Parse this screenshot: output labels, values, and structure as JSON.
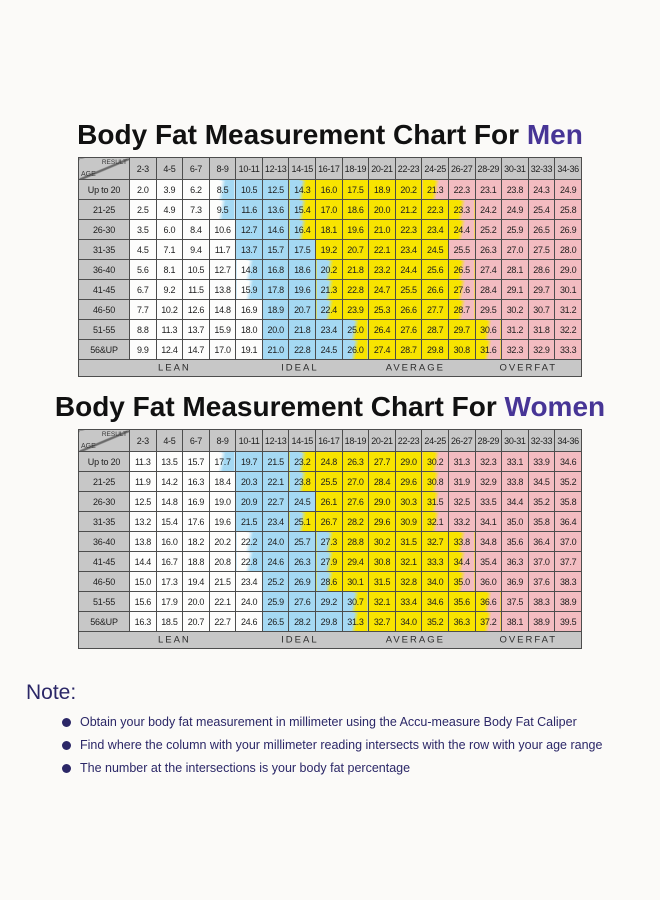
{
  "colors": {
    "accent": "#473596",
    "note_text": "#2b2767",
    "header_bg": "#c7c7c7",
    "lean_bg": "#fdfdfc",
    "ideal_bg": "#a5d9f3",
    "average_bg": "#f8e400",
    "overfat_bg": "#f3bcc1",
    "border": "#4d4d4d"
  },
  "chart_data": [
    {
      "type": "table",
      "title_prefix": "Body Fat Measurement Chart For ",
      "title_accent": "Men",
      "corner_top": "RESULT",
      "corner_bottom": "AGE",
      "columns": [
        "2-3",
        "4-5",
        "6-7",
        "8-9",
        "10-11",
        "12-13",
        "14-15",
        "16-17",
        "18-19",
        "20-21",
        "22-23",
        "24-25",
        "26-27",
        "28-29",
        "30-31",
        "32-33",
        "34-36"
      ],
      "rows": [
        {
          "age": "Up to 20",
          "values": [
            "2.0",
            "3.9",
            "6.2",
            "8.5",
            "10.5",
            "12.5",
            "14.3",
            "16.0",
            "17.5",
            "18.9",
            "20.2",
            "21.3",
            "22.3",
            "23.1",
            "23.8",
            "24.3",
            "24.9"
          ],
          "colors": [
            "w",
            "w",
            "w",
            "wb",
            "b",
            "b",
            "by",
            "y",
            "y",
            "y",
            "y",
            "yp",
            "p",
            "p",
            "p",
            "p",
            "p"
          ]
        },
        {
          "age": "21-25",
          "values": [
            "2.5",
            "4.9",
            "7.3",
            "9.5",
            "11.6",
            "13.6",
            "15.4",
            "17.0",
            "18.6",
            "20.0",
            "21.2",
            "22.3",
            "23.3",
            "24.2",
            "24.9",
            "25.4",
            "25.8"
          ],
          "colors": [
            "w",
            "w",
            "w",
            "wb",
            "b",
            "b",
            "by",
            "y",
            "y",
            "y",
            "y",
            "y",
            "yp",
            "p",
            "p",
            "p",
            "p"
          ]
        },
        {
          "age": "26-30",
          "values": [
            "3.5",
            "6.0",
            "8.4",
            "10.6",
            "12.7",
            "14.6",
            "16.4",
            "18.1",
            "19.6",
            "21.0",
            "22.3",
            "23.4",
            "24.4",
            "25.2",
            "25.9",
            "26.5",
            "26.9"
          ],
          "colors": [
            "w",
            "w",
            "w",
            "w",
            "b",
            "b",
            "by",
            "y",
            "y",
            "y",
            "y",
            "y",
            "yp",
            "p",
            "p",
            "p",
            "p"
          ]
        },
        {
          "age": "31-35",
          "values": [
            "4.5",
            "7.1",
            "9.4",
            "11.7",
            "13.7",
            "15.7",
            "17.5",
            "19.2",
            "20.7",
            "22.1",
            "23.4",
            "24.5",
            "25.5",
            "26.3",
            "27.0",
            "27.5",
            "28.0"
          ],
          "colors": [
            "w",
            "w",
            "w",
            "w",
            "b",
            "b",
            "b",
            "y",
            "y",
            "y",
            "y",
            "y",
            "p",
            "p",
            "p",
            "p",
            "p"
          ]
        },
        {
          "age": "36-40",
          "values": [
            "5.6",
            "8.1",
            "10.5",
            "12.7",
            "14.8",
            "16.8",
            "18.6",
            "20.2",
            "21.8",
            "23.2",
            "24.4",
            "25.6",
            "26.5",
            "27.4",
            "28.1",
            "28.6",
            "29.0"
          ],
          "colors": [
            "w",
            "w",
            "w",
            "w",
            "wb",
            "b",
            "b",
            "by",
            "y",
            "y",
            "y",
            "y",
            "yp",
            "p",
            "p",
            "p",
            "p"
          ]
        },
        {
          "age": "41-45",
          "values": [
            "6.7",
            "9.2",
            "11.5",
            "13.8",
            "15.9",
            "17.8",
            "19.6",
            "21.3",
            "22.8",
            "24.7",
            "25.5",
            "26.6",
            "27.6",
            "28.4",
            "29.1",
            "29.7",
            "30.1"
          ],
          "colors": [
            "w",
            "w",
            "w",
            "w",
            "wb",
            "b",
            "b",
            "by",
            "y",
            "y",
            "y",
            "y",
            "yp",
            "p",
            "p",
            "p",
            "p"
          ]
        },
        {
          "age": "46-50",
          "values": [
            "7.7",
            "10.2",
            "12.6",
            "14.8",
            "16.9",
            "18.9",
            "20.7",
            "22.4",
            "23.9",
            "25.3",
            "26.6",
            "27.7",
            "28.7",
            "29.5",
            "30.2",
            "30.7",
            "31.2"
          ],
          "colors": [
            "w",
            "w",
            "w",
            "w",
            "w",
            "b",
            "b",
            "by",
            "y",
            "y",
            "y",
            "y",
            "yp",
            "p",
            "p",
            "p",
            "p"
          ]
        },
        {
          "age": "51-55",
          "values": [
            "8.8",
            "11.3",
            "13.7",
            "15.9",
            "18.0",
            "20.0",
            "21.8",
            "23.4",
            "25.0",
            "26.4",
            "27.6",
            "28.7",
            "29.7",
            "30.6",
            "31.2",
            "31.8",
            "32.2"
          ],
          "colors": [
            "w",
            "w",
            "w",
            "w",
            "w",
            "b",
            "b",
            "b",
            "by",
            "y",
            "y",
            "y",
            "y",
            "yp",
            "p",
            "p",
            "p"
          ]
        },
        {
          "age": "56&UP",
          "values": [
            "9.9",
            "12.4",
            "14.7",
            "17.0",
            "19.1",
            "21.0",
            "22.8",
            "24.5",
            "26.0",
            "27.4",
            "28.7",
            "29.8",
            "30.8",
            "31.6",
            "32.3",
            "32.9",
            "33.3"
          ],
          "colors": [
            "w",
            "w",
            "w",
            "w",
            "w",
            "b",
            "b",
            "b",
            "by",
            "y",
            "y",
            "y",
            "y",
            "yp",
            "p",
            "p",
            "p"
          ]
        }
      ],
      "zones": [
        "LEAN",
        "IDEAL",
        "AVERAGE",
        "OVERFAT"
      ]
    },
    {
      "type": "table",
      "title_prefix": "Body Fat Measurement Chart For ",
      "title_accent": "Women",
      "corner_top": "RESULT",
      "corner_bottom": "AGE",
      "columns": [
        "2-3",
        "4-5",
        "6-7",
        "8-9",
        "10-11",
        "12-13",
        "14-15",
        "16-17",
        "18-19",
        "20-21",
        "22-23",
        "24-25",
        "26-27",
        "28-29",
        "30-31",
        "32-33",
        "34-36"
      ],
      "rows": [
        {
          "age": "Up to 20",
          "values": [
            "11.3",
            "13.5",
            "15.7",
            "17.7",
            "19.7",
            "21.5",
            "23.2",
            "24.8",
            "26.3",
            "27.7",
            "29.0",
            "30.2",
            "31.3",
            "32.3",
            "33.1",
            "33.9",
            "34.6"
          ],
          "colors": [
            "w",
            "w",
            "w",
            "wb",
            "b",
            "b",
            "by",
            "y",
            "y",
            "y",
            "y",
            "yp",
            "p",
            "p",
            "p",
            "p",
            "p"
          ]
        },
        {
          "age": "21-25",
          "values": [
            "11.9",
            "14.2",
            "16.3",
            "18.4",
            "20.3",
            "22.1",
            "23.8",
            "25.5",
            "27.0",
            "28.4",
            "29.6",
            "30.8",
            "31.9",
            "32.9",
            "33.8",
            "34.5",
            "35.2"
          ],
          "colors": [
            "w",
            "w",
            "w",
            "w",
            "b",
            "b",
            "by",
            "y",
            "y",
            "y",
            "y",
            "yp",
            "p",
            "p",
            "p",
            "p",
            "p"
          ]
        },
        {
          "age": "26-30",
          "values": [
            "12.5",
            "14.8",
            "16.9",
            "19.0",
            "20.9",
            "22.7",
            "24.5",
            "26.1",
            "27.6",
            "29.0",
            "30.3",
            "31.5",
            "32.5",
            "33.5",
            "34.4",
            "35.2",
            "35.8"
          ],
          "colors": [
            "w",
            "w",
            "w",
            "w",
            "b",
            "b",
            "b",
            "y",
            "y",
            "y",
            "y",
            "yp",
            "p",
            "p",
            "p",
            "p",
            "p"
          ]
        },
        {
          "age": "31-35",
          "values": [
            "13.2",
            "15.4",
            "17.6",
            "19.6",
            "21.5",
            "23.4",
            "25.1",
            "26.7",
            "28.2",
            "29.6",
            "30.9",
            "32.1",
            "33.2",
            "34.1",
            "35.0",
            "35.8",
            "36.4"
          ],
          "colors": [
            "w",
            "w",
            "w",
            "w",
            "b",
            "b",
            "by",
            "y",
            "y",
            "y",
            "y",
            "yp",
            "p",
            "p",
            "p",
            "p",
            "p"
          ]
        },
        {
          "age": "36-40",
          "values": [
            "13.8",
            "16.0",
            "18.2",
            "20.2",
            "22.2",
            "24.0",
            "25.7",
            "27.3",
            "28.8",
            "30.2",
            "31.5",
            "32.7",
            "33.8",
            "34.8",
            "35.6",
            "36.4",
            "37.0"
          ],
          "colors": [
            "w",
            "w",
            "w",
            "w",
            "wb",
            "b",
            "b",
            "by",
            "y",
            "y",
            "y",
            "y",
            "yp",
            "p",
            "p",
            "p",
            "p"
          ]
        },
        {
          "age": "41-45",
          "values": [
            "14.4",
            "16.7",
            "18.8",
            "20.8",
            "22.8",
            "24.6",
            "26.3",
            "27.9",
            "29.4",
            "30.8",
            "32.1",
            "33.3",
            "34.4",
            "35.4",
            "36.3",
            "37.0",
            "37.7"
          ],
          "colors": [
            "w",
            "w",
            "w",
            "w",
            "wb",
            "b",
            "b",
            "by",
            "y",
            "y",
            "y",
            "y",
            "yp",
            "p",
            "p",
            "p",
            "p"
          ]
        },
        {
          "age": "46-50",
          "values": [
            "15.0",
            "17.3",
            "19.4",
            "21.5",
            "23.4",
            "25.2",
            "26.9",
            "28.6",
            "30.1",
            "31.5",
            "32.8",
            "34.0",
            "35.0",
            "36.0",
            "36.9",
            "37.6",
            "38.3"
          ],
          "colors": [
            "w",
            "w",
            "w",
            "w",
            "w",
            "b",
            "b",
            "by",
            "y",
            "y",
            "y",
            "y",
            "yp",
            "p",
            "p",
            "p",
            "p"
          ]
        },
        {
          "age": "51-55",
          "values": [
            "15.6",
            "17.9",
            "20.0",
            "22.1",
            "24.0",
            "25.9",
            "27.6",
            "29.2",
            "30.7",
            "32.1",
            "33.4",
            "34.6",
            "35.6",
            "36.6",
            "37.5",
            "38.3",
            "38.9"
          ],
          "colors": [
            "w",
            "w",
            "w",
            "w",
            "w",
            "b",
            "b",
            "b",
            "by",
            "y",
            "y",
            "y",
            "y",
            "yp",
            "p",
            "p",
            "p"
          ]
        },
        {
          "age": "56&UP",
          "values": [
            "16.3",
            "18.5",
            "20.7",
            "22.7",
            "24.6",
            "26.5",
            "28.2",
            "29.8",
            "31.3",
            "32.7",
            "34.0",
            "35.2",
            "36.3",
            "37.2",
            "38.1",
            "38.9",
            "39.5"
          ],
          "colors": [
            "w",
            "w",
            "w",
            "w",
            "w",
            "b",
            "b",
            "b",
            "by",
            "y",
            "y",
            "y",
            "y",
            "yp",
            "p",
            "p",
            "p"
          ]
        }
      ],
      "zones": [
        "LEAN",
        "IDEAL",
        "AVERAGE",
        "OVERFAT"
      ]
    }
  ],
  "note": {
    "title": "Note:",
    "items": [
      "Obtain your body fat measurement in millimeter using the Accu-measure Body Fat Caliper",
      "Find where the column with your millimeter reading intersects with the row with your age range",
      "The number at the intersections is your body fat percentage"
    ]
  }
}
